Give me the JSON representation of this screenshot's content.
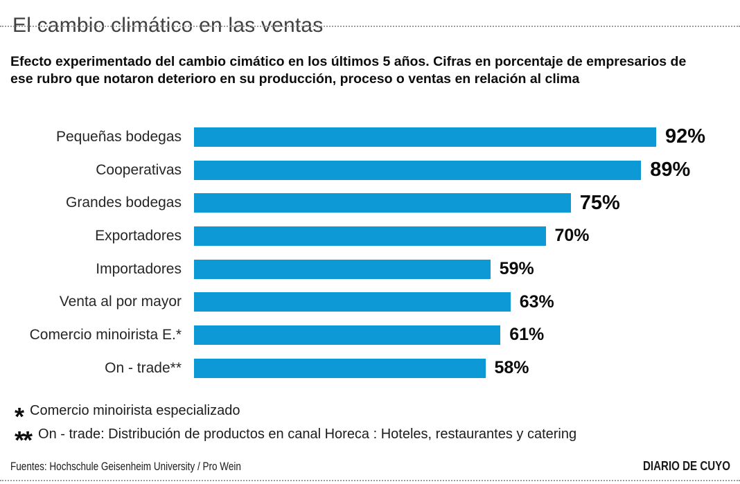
{
  "header": {
    "title": "El cambio climático en las ventas"
  },
  "intro": {
    "text": "Efecto experimentado del cambio cimático en los últimos 5 años. Cifras en porcentaje de empresarios de ese rubro que notaron deterioro en su producción, proceso o ventas en relación al clima"
  },
  "chart_data": {
    "type": "bar",
    "orientation": "horizontal",
    "title": "El cambio climático en las ventas",
    "subtitle": "Efecto experimentado del cambio cimático en los últimos 5 años. Cifras en porcentaje de empresarios de ese rubro que notaron deterioro en su producción, proceso o ventas en relación al clima",
    "categories": [
      "Pequeñas bodegas",
      "Cooperativas",
      "Grandes bodegas",
      "Exportadores",
      "Importadores",
      "Venta al por mayor",
      "Comercio minoirista E.*",
      "On - trade**"
    ],
    "values": [
      92,
      89,
      75,
      70,
      59,
      63,
      61,
      58
    ],
    "value_labels": [
      "92%",
      "89%",
      "75%",
      "70%",
      "59%",
      "63%",
      "61%",
      "58%"
    ],
    "unit": "%",
    "xlim": [
      0,
      100
    ],
    "bar_color": "#0d98d6",
    "grid": false,
    "legend_position": "none"
  },
  "footnotes": [
    {
      "marker": "*",
      "text": "Comercio minoirista especializado"
    },
    {
      "marker": "**",
      "text": "On - trade: Distribución de productos en canal Horeca : Hoteles, restaurantes y catering"
    }
  ],
  "footer": {
    "source": "Fuentes: Hochschule Geisenheim University / Pro Wein",
    "brand": "DIARIO DE CUYO"
  }
}
